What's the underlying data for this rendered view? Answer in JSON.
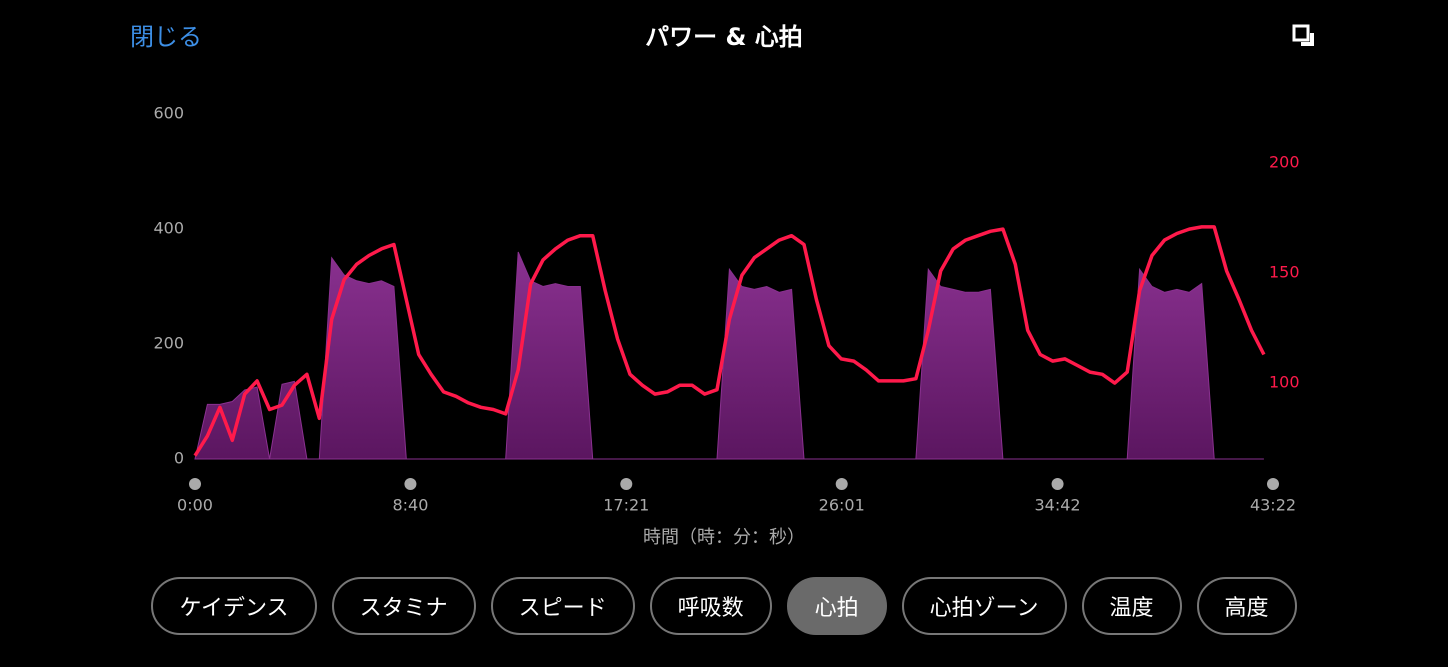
{
  "header": {
    "close": "閉じる",
    "title": "パワー & 心拍"
  },
  "chart_data": {
    "type": "area-line",
    "x_label": "時間（時：分：秒）",
    "x": [
      0,
      30,
      60,
      90,
      120,
      150,
      180,
      210,
      240,
      270,
      300,
      330,
      360,
      390,
      420,
      450,
      480,
      510,
      540,
      570,
      600,
      630,
      660,
      690,
      720,
      750,
      780,
      810,
      840,
      870,
      900,
      930,
      960,
      990,
      1020,
      1050,
      1080,
      1110,
      1140,
      1170,
      1200,
      1230,
      1260,
      1290,
      1320,
      1350,
      1380,
      1410,
      1440,
      1470,
      1500,
      1530,
      1560,
      1590,
      1620,
      1650,
      1680,
      1710,
      1740,
      1770,
      1800,
      1830,
      1860,
      1890,
      1920,
      1950,
      1980,
      2010,
      2040,
      2070,
      2100,
      2130,
      2160,
      2190,
      2220,
      2250,
      2280,
      2310,
      2340,
      2370,
      2400,
      2430,
      2460,
      2490,
      2520,
      2550,
      2580
    ],
    "series": [
      {
        "color": "#8a3190",
        "axis": "y",
        "values": [
          0,
          95,
          95,
          100,
          120,
          125,
          0,
          130,
          135,
          0,
          0,
          350,
          320,
          310,
          305,
          310,
          300,
          0,
          0,
          0,
          0,
          0,
          0,
          0,
          0,
          0,
          360,
          310,
          300,
          305,
          300,
          300,
          0,
          0,
          0,
          0,
          0,
          0,
          0,
          0,
          0,
          0,
          0,
          330,
          300,
          295,
          300,
          290,
          295,
          0,
          0,
          0,
          0,
          0,
          0,
          0,
          0,
          0,
          0,
          330,
          300,
          295,
          290,
          290,
          295,
          0,
          0,
          0,
          0,
          0,
          0,
          0,
          0,
          0,
          0,
          0,
          330,
          300,
          290,
          295,
          290,
          305,
          0,
          0,
          0,
          0,
          0
        ]
      },
      {
        "color": "#ff1a4b",
        "axis": "y2",
        "values": [
          67,
          76,
          89,
          74,
          95,
          101,
          88,
          90,
          99,
          104,
          84,
          129,
          147,
          154,
          158,
          161,
          163,
          138,
          113,
          104,
          96,
          94,
          91,
          89,
          88,
          86,
          106,
          145,
          156,
          161,
          165,
          167,
          167,
          142,
          120,
          104,
          99,
          95,
          96,
          99,
          99,
          95,
          97,
          129,
          149,
          157,
          161,
          165,
          167,
          163,
          138,
          117,
          111,
          110,
          106,
          101,
          101,
          101,
          102,
          124,
          151,
          161,
          165,
          167,
          169,
          170,
          154,
          124,
          113,
          110,
          111,
          108,
          105,
          104,
          100,
          105,
          142,
          158,
          165,
          168,
          170,
          171,
          171,
          151,
          138,
          124,
          113
        ]
      }
    ],
    "xlim": [
      0,
      2602
    ],
    "xticks": [
      {
        "value": 0,
        "label": "0:00"
      },
      {
        "value": 520,
        "label": "8:40"
      },
      {
        "value": 1041,
        "label": "17:21"
      },
      {
        "value": 1561,
        "label": "26:01"
      },
      {
        "value": 2082,
        "label": "34:42"
      },
      {
        "value": 2602,
        "label": "43:22"
      }
    ],
    "ylim": [
      0,
      600
    ],
    "yticks": [
      0,
      200,
      400,
      600
    ],
    "y2lim": [
      65.5,
      222.3
    ],
    "y2ticks": [
      100,
      150,
      200
    ]
  },
  "buttons": {
    "items": [
      "ケイデンス",
      "スタミナ",
      "スピード",
      "呼吸数",
      "心拍",
      "心拍ゾーン",
      "温度",
      "高度"
    ],
    "selected": 4
  }
}
